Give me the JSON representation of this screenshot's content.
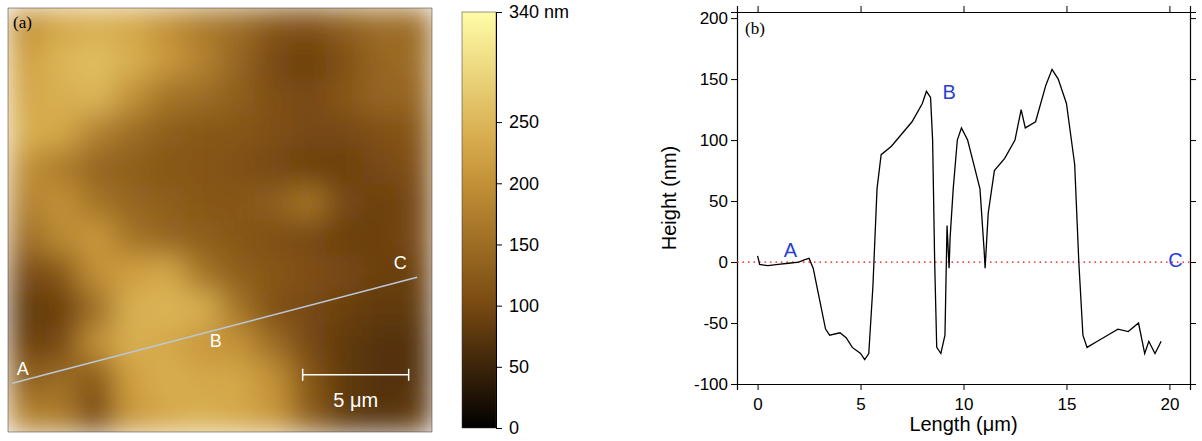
{
  "chart_data": [
    {
      "type": "heatmap",
      "panel_label": "(a)",
      "tick_labels": false,
      "cells": [
        [
          200,
          230,
          240,
          230,
          200,
          170,
          150,
          120,
          110,
          130,
          150,
          150
        ],
        [
          220,
          250,
          260,
          240,
          210,
          180,
          140,
          100,
          90,
          110,
          140,
          150
        ],
        [
          230,
          240,
          250,
          200,
          160,
          150,
          130,
          110,
          100,
          120,
          140,
          140
        ],
        [
          240,
          230,
          180,
          150,
          130,
          120,
          120,
          110,
          100,
          100,
          110,
          120
        ],
        [
          200,
          170,
          140,
          130,
          120,
          120,
          110,
          100,
          90,
          90,
          100,
          110
        ],
        [
          180,
          200,
          160,
          140,
          130,
          120,
          120,
          130,
          160,
          100,
          90,
          100
        ],
        [
          150,
          190,
          210,
          160,
          140,
          130,
          120,
          110,
          100,
          90,
          90,
          100
        ],
        [
          100,
          120,
          200,
          220,
          230,
          160,
          130,
          120,
          110,
          100,
          90,
          90
        ],
        [
          80,
          90,
          150,
          240,
          250,
          240,
          160,
          110,
          100,
          90,
          80,
          80
        ],
        [
          90,
          100,
          200,
          240,
          230,
          210,
          200,
          150,
          100,
          80,
          70,
          70
        ],
        [
          130,
          150,
          120,
          220,
          240,
          230,
          230,
          200,
          120,
          80,
          70,
          70
        ],
        [
          180,
          170,
          100,
          210,
          230,
          240,
          230,
          210,
          130,
          80,
          70,
          80
        ]
      ],
      "colorbar": {
        "range": [
          0,
          340
        ],
        "ticks": [
          0,
          50,
          100,
          150,
          200,
          250,
          {
            "value": 340,
            "label": "340 nm"
          }
        ]
      },
      "annotations": [
        {
          "text": "A"
        },
        {
          "text": "B"
        },
        {
          "text": "C"
        }
      ],
      "scale_bar": {
        "label": "5 μm"
      }
    },
    {
      "type": "line",
      "panel_label": "(b)",
      "x_label": "Length (μm)",
      "y_label": "Height (nm)",
      "xlim": [
        -1,
        21
      ],
      "ylim": [
        -100,
        205
      ],
      "xticks": [
        0,
        5,
        10,
        15,
        20
      ],
      "yticks": [
        -100,
        -50,
        0,
        50,
        100,
        150,
        200
      ],
      "color": "#000000",
      "x": [
        0,
        0.1,
        0.5,
        1,
        1.5,
        2,
        2.3,
        2.5,
        2.7,
        3,
        3.3,
        3.5,
        4,
        4.3,
        4.6,
        5,
        5.2,
        5.4,
        5.6,
        5.8,
        6,
        6.5,
        7,
        7.5,
        8,
        8.2,
        8.4,
        8.5,
        8.6,
        8.7,
        8.9,
        9.1,
        9.2,
        9.3,
        9.35,
        9.5,
        9.7,
        9.9,
        10.2,
        10.5,
        10.8,
        11,
        11.05,
        11.2,
        11.5,
        12,
        12.5,
        12.8,
        13,
        13.5,
        14,
        14.3,
        14.6,
        15,
        15.4,
        15.6,
        15.8,
        16,
        16.5,
        17,
        17.5,
        18,
        18.5,
        18.8,
        19,
        19.3,
        19.6
      ],
      "values": [
        5,
        -2,
        -3,
        -2,
        -1,
        0,
        2,
        3,
        -5,
        -30,
        -55,
        -60,
        -58,
        -62,
        -70,
        -75,
        -80,
        -75,
        -20,
        60,
        88,
        95,
        105,
        115,
        130,
        140,
        135,
        100,
        0,
        -70,
        -75,
        -60,
        30,
        -5,
        20,
        60,
        100,
        110,
        100,
        80,
        60,
        10,
        -5,
        40,
        75,
        85,
        100,
        125,
        110,
        115,
        145,
        158,
        150,
        130,
        80,
        0,
        -60,
        -70,
        -65,
        -60,
        -55,
        -57,
        -50,
        -75,
        -65,
        -75,
        -65
      ],
      "reference_line": {
        "value": 0,
        "color": "#ff0000",
        "line_style": "dotted"
      },
      "annotations": [
        {
          "text": "A",
          "x": 1.6,
          "y": 4
        },
        {
          "text": "B",
          "x": 9.3,
          "y": 134
        },
        {
          "text": "C",
          "x": 20.3,
          "y": -4
        }
      ]
    }
  ]
}
